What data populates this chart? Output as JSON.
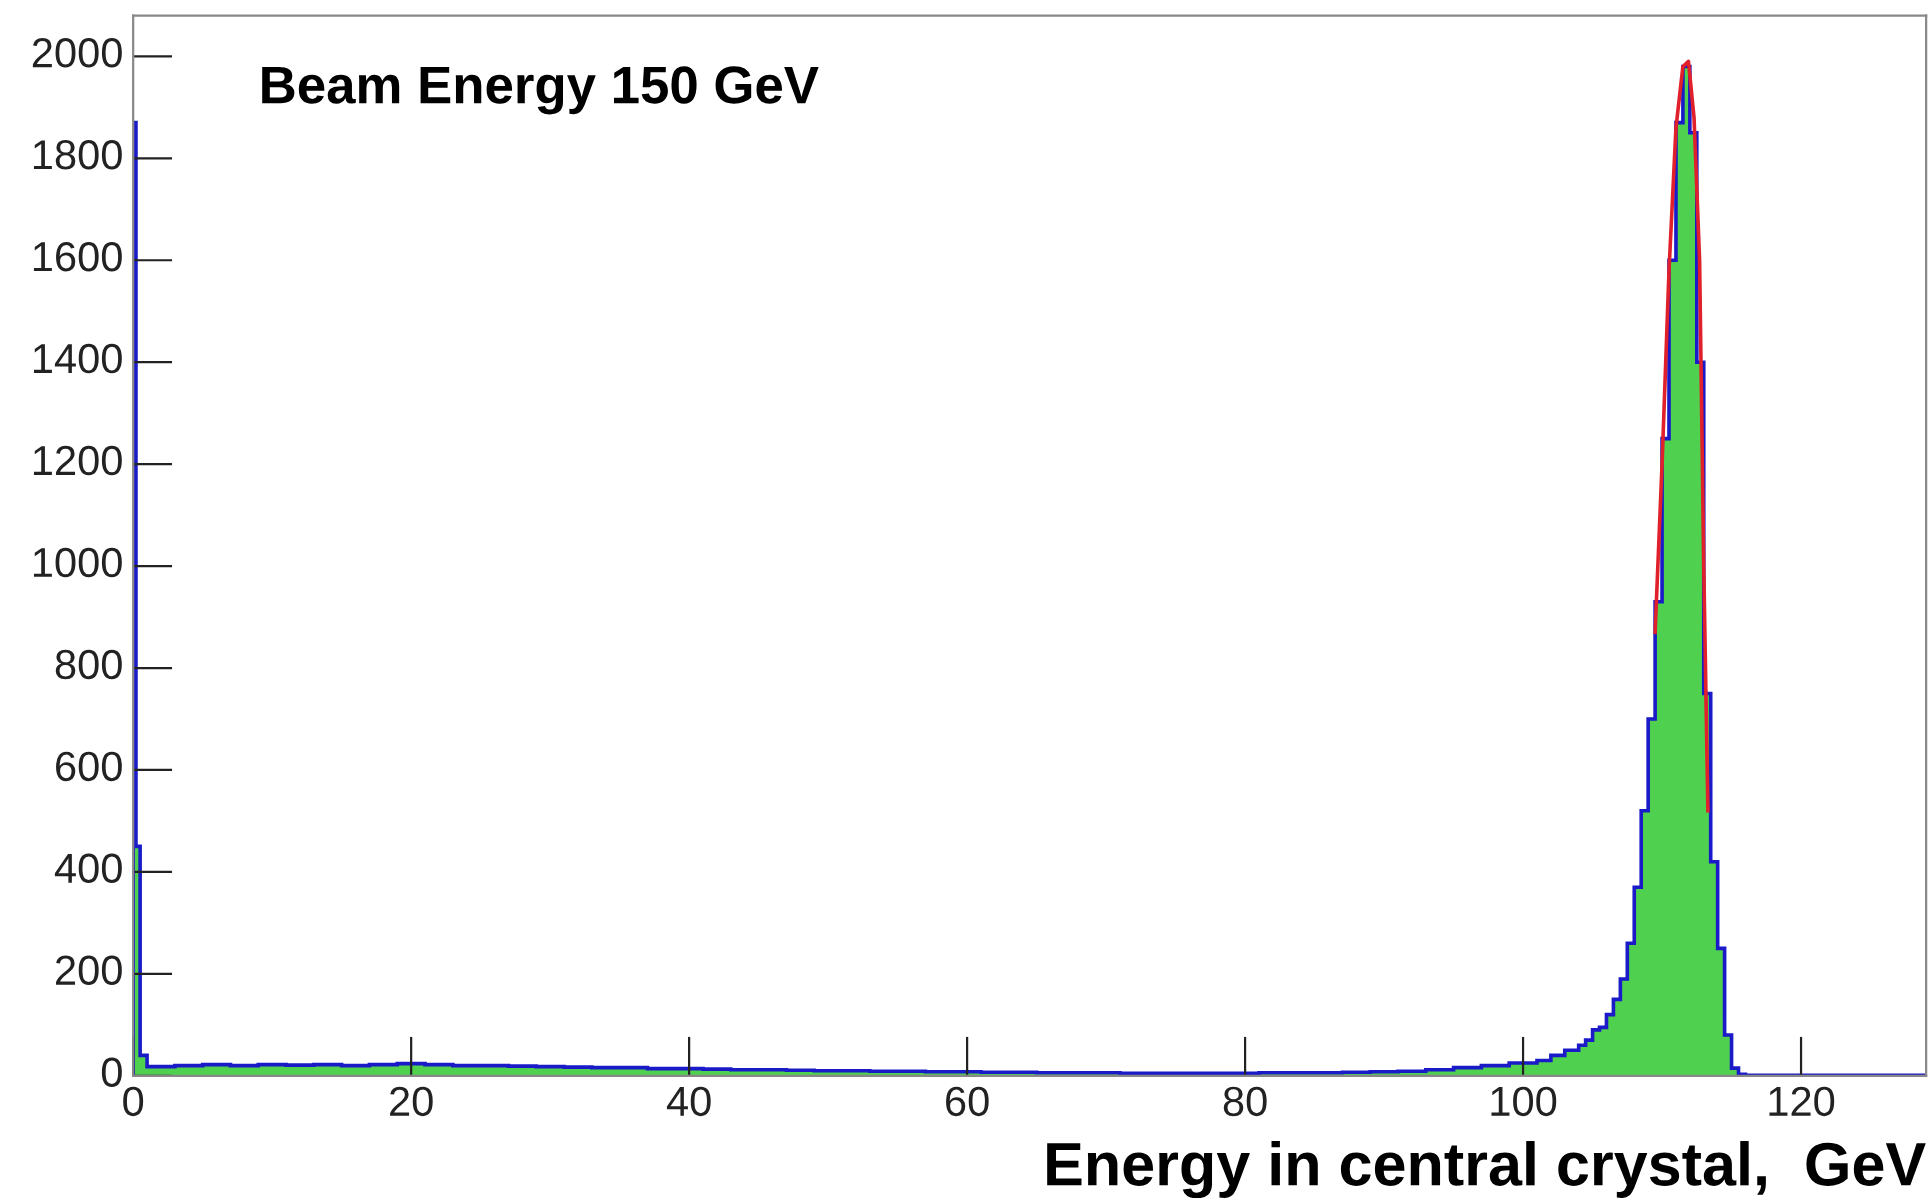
{
  "chart_data": {
    "type": "histogram",
    "title": "Beam Energy 150 GeV",
    "xlabel": "Energy in central crystal,  GeV",
    "xlim": [
      0,
      129
    ],
    "ylim": [
      0,
      2080
    ],
    "xticks": [
      0,
      20,
      40,
      60,
      80,
      100,
      120
    ],
    "yticks": [
      0,
      200,
      400,
      600,
      800,
      1000,
      1200,
      1400,
      1600,
      1800,
      2000
    ],
    "grid": false,
    "legend": false,
    "series": [
      {
        "color": "#4fd14f",
        "bins": [
          0,
          0.2,
          0.5,
          1,
          3,
          5,
          7,
          9,
          11,
          13,
          15,
          17,
          19,
          21,
          23,
          25,
          27,
          29,
          31,
          33,
          35,
          37,
          39,
          41,
          43,
          45,
          47,
          49,
          51,
          53,
          55,
          57,
          59,
          61,
          63,
          65,
          67,
          69,
          71,
          73,
          75,
          77,
          79,
          81,
          83,
          85,
          87,
          89,
          91,
          93,
          95,
          97,
          99,
          101,
          102,
          103,
          104,
          104.5,
          105,
          105.5,
          106,
          106.5,
          107,
          107.5,
          108,
          108.5,
          109,
          109.5,
          110,
          110.5,
          111,
          111.5,
          112,
          112.5,
          113,
          113.5,
          114,
          114.5,
          115,
          115.5,
          116,
          129
        ],
        "values": [
          1870,
          450,
          40,
          18,
          20,
          22,
          20,
          22,
          21,
          22,
          20,
          22,
          24,
          22,
          20,
          20,
          19,
          18,
          17,
          16,
          16,
          14,
          14,
          13,
          12,
          12,
          11,
          10,
          10,
          9,
          9,
          8,
          8,
          7,
          7,
          6,
          6,
          6,
          5,
          5,
          5,
          5,
          5,
          6,
          6,
          6,
          7,
          8,
          9,
          12,
          16,
          20,
          25,
          30,
          40,
          50,
          60,
          70,
          90,
          95,
          120,
          150,
          190,
          260,
          370,
          520,
          700,
          930,
          1250,
          1600,
          1870,
          1980,
          1850,
          1400,
          750,
          420,
          250,
          80,
          15,
          3,
          1
        ]
      },
      {
        "type": "line",
        "color": "#e0202a",
        "x": [
          109.5,
          110,
          110.5,
          111,
          111.5,
          111.9,
          112.3,
          112.7,
          113,
          113.3
        ],
        "values": [
          870,
          1200,
          1580,
          1860,
          1980,
          1990,
          1880,
          1600,
          1000,
          520
        ]
      }
    ]
  }
}
